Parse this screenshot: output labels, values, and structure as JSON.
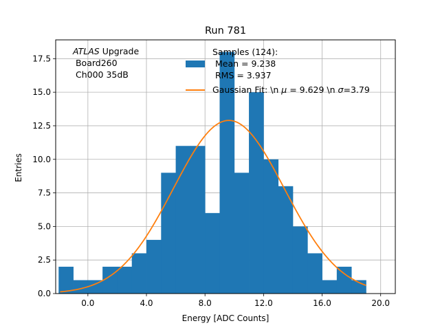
{
  "chart_data": {
    "type": "bar",
    "title": "Run 781",
    "xlabel": "Energy [ADC Counts]",
    "ylabel": "Entries",
    "xlim": [
      -2.2,
      21.0
    ],
    "ylim": [
      0,
      18.9
    ],
    "grid": true,
    "xticks": [
      0.0,
      4.0,
      8.0,
      12.0,
      16.0,
      20.0
    ],
    "xtick_labels": [
      "0.0",
      "4.0",
      "8.0",
      "12.0",
      "16.0",
      "20.0"
    ],
    "yticks": [
      0.0,
      2.5,
      5.0,
      7.5,
      10.0,
      12.5,
      15.0,
      17.5
    ],
    "ytick_labels": [
      "0.0",
      "2.5",
      "5.0",
      "7.5",
      "10.0",
      "12.5",
      "15.0",
      "17.5"
    ],
    "histogram": {
      "bin_edges": [
        -2,
        -1,
        0,
        1,
        2,
        3,
        4,
        5,
        6,
        7,
        8,
        9,
        10,
        11,
        12,
        13,
        14,
        15,
        16,
        17,
        18,
        19
      ],
      "counts": [
        2,
        1,
        1,
        2,
        2,
        3,
        4,
        9,
        11,
        11,
        6,
        18,
        9,
        15,
        10,
        8,
        5,
        3,
        1,
        2,
        1
      ],
      "color": "#1f77b4"
    },
    "fit": {
      "mu": 9.629,
      "sigma": 3.79,
      "peak": 12.9,
      "x_range": [
        -1.9,
        19.0
      ],
      "color": "#ff7f0e"
    },
    "annotation": {
      "italic": "ATLAS",
      "rest": " Upgrade",
      "line2": " Board260",
      "line3": " Ch000 35dB"
    },
    "legend": {
      "position": "upper-right",
      "entries": [
        {
          "kind": "patch",
          "lines": [
            "Samples (124):",
            " Mean = 9.238",
            " RMS = 3.937"
          ]
        },
        {
          "kind": "line",
          "prefix": "Gaussian Fit: \\n ",
          "mu_sym": "μ",
          "mid": " = 9.629 \\n ",
          "sigma_sym": "σ",
          "suffix": "=3.79"
        }
      ]
    }
  }
}
